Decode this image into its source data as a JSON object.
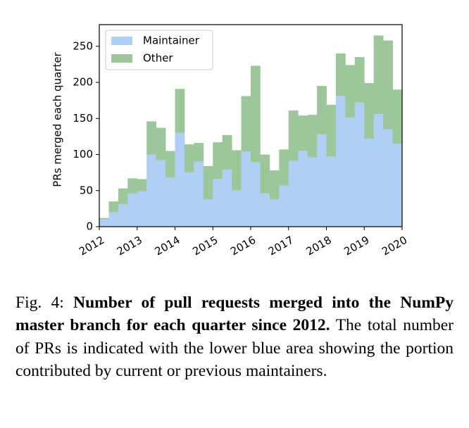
{
  "chart_data": {
    "type": "stacked_histogram",
    "ylabel": "PRs merged each quarter",
    "bins": [
      2012,
      2012.25,
      2012.5,
      2012.75,
      2013,
      2013.25,
      2013.5,
      2013.75,
      2014,
      2014.25,
      2014.5,
      2014.75,
      2015,
      2015.25,
      2015.5,
      2015.75,
      2016,
      2016.25,
      2016.5,
      2016.75,
      2017,
      2017.25,
      2017.5,
      2017.75,
      2018,
      2018.25,
      2018.5,
      2018.75,
      2019,
      2019.25,
      2019.5,
      2019.75,
      2020
    ],
    "series": [
      {
        "name": "Maintainer",
        "color": "#b0cff5",
        "values": [
          10,
          20,
          31,
          46,
          49,
          100,
          92,
          68,
          130,
          75,
          90,
          38,
          66,
          79,
          50,
          104,
          89,
          46,
          38,
          57,
          91,
          105,
          96,
          128,
          97,
          181,
          151,
          172,
          122,
          156,
          135,
          115
        ]
      },
      {
        "name": "Other",
        "color": "#9dc79a",
        "values": [
          2,
          15,
          22,
          21,
          17,
          46,
          45,
          37,
          61,
          39,
          26,
          46,
          51,
          48,
          56,
          77,
          134,
          54,
          40,
          50,
          70,
          49,
          59,
          67,
          72,
          59,
          73,
          63,
          77,
          109,
          123,
          75
        ]
      }
    ],
    "xlim": [
      2012,
      2020
    ],
    "xticks": [
      2012,
      2013,
      2014,
      2015,
      2016,
      2017,
      2018,
      2019,
      2020
    ],
    "ylim": [
      0,
      280
    ],
    "yticks": [
      0,
      50,
      100,
      150,
      200,
      250
    ],
    "legend": "upper left",
    "grid": false
  },
  "caption": {
    "label": "Fig. 4:",
    "title": "Number of pull requests merged into the NumPy master branch for each quarter since 2012.",
    "text": "The total number of PRs is indicated with the lower blue area showing the portion contributed by current or previous maintainers."
  }
}
